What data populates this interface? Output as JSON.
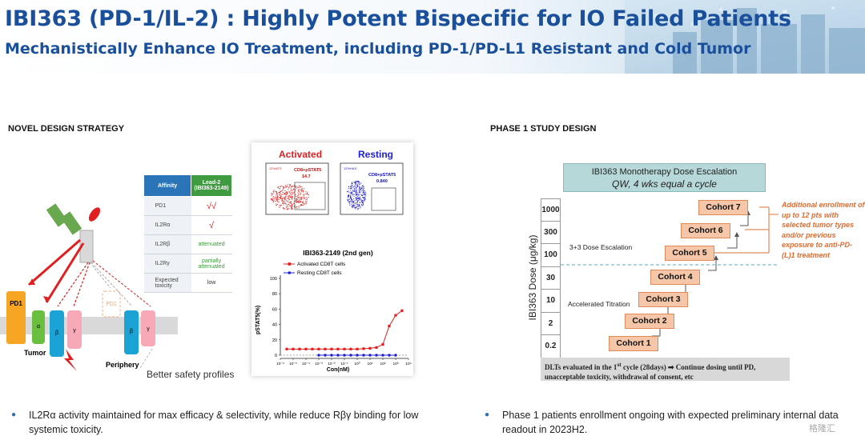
{
  "header": {
    "title": "IBI363 (PD-1/IL-2) : Highly Potent Bispecific for IO Failed Patients",
    "subtitle": "Mechanistically Enhance IO Treatment, including PD-1/PD-L1 Resistant and Cold Tumor"
  },
  "left": {
    "section_title": "NOVEL DESIGN STRATEGY",
    "table": {
      "col1": "Affinity",
      "col2_line1": "Lead-2",
      "col2_line2": "(IBI363-2149)",
      "rows": [
        {
          "label": "PD1",
          "value": "√√"
        },
        {
          "label": "IL2Rα",
          "value": "√"
        },
        {
          "label": "IL2Rβ",
          "value": "attenuated"
        },
        {
          "label": "IL2Rγ",
          "value": "partially attenuated"
        },
        {
          "label": "Expected toxicity",
          "value": "low"
        }
      ]
    },
    "diagram": {
      "pd1_left": "PD1",
      "pd1_right": "PD1",
      "alpha": "α",
      "beta": "β",
      "gamma": "γ",
      "tumor": "Tumor",
      "periphery": "Periphery"
    },
    "safety_text": "Better safety profiles",
    "flow": {
      "activated": "Activated",
      "resting": "Resting",
      "gate_label": "CD8+pSTAT5",
      "activated_value": "14.7",
      "resting_value": "0.840",
      "activated_tag": "12%ATS",
      "resting_tag": "12%HAS"
    },
    "bullet": "IL2Rα activity maintained for max efficacy & selectivity, while reduce Rβγ binding for low systemic toxicity."
  },
  "chart_data": {
    "type": "line",
    "title": "IBI363-2149 (2nd gen)",
    "xlabel": "Con(nM)",
    "ylabel": "pSTAT5(%)",
    "x_scale": "log10",
    "x_ticks": [
      "10⁻⁶",
      "10⁻⁵",
      "10⁻⁴",
      "10⁻³",
      "10⁻²",
      "10⁻¹",
      "10⁰",
      "10¹",
      "10²",
      "10³",
      "10⁴"
    ],
    "x_tick_exponents": [
      -6,
      -5,
      -4,
      -3,
      -2,
      -1,
      0,
      1,
      2,
      3,
      4
    ],
    "ylim": [
      0,
      100
    ],
    "y_ticks": [
      "0",
      "20",
      "40",
      "60",
      "80",
      "100"
    ],
    "y_tick_values": [
      0,
      20,
      40,
      60,
      80,
      100
    ],
    "reference_line": 0,
    "legend_position": "top",
    "series": [
      {
        "name": "Activated CD8T cells",
        "color": "#e02020",
        "x_exp": [
          -5.5,
          -5,
          -4.5,
          -4,
          -3.5,
          -3,
          -2.5,
          -2,
          -1.5,
          -1,
          -0.5,
          0,
          0.5,
          1,
          1.5,
          2,
          2.5,
          3,
          3.5
        ],
        "y": [
          8,
          8,
          8,
          8,
          8,
          8,
          8,
          8,
          8,
          8,
          8,
          8,
          8.5,
          9,
          10,
          14,
          38,
          52,
          58
        ]
      },
      {
        "name": "Resting CD8T cells",
        "color": "#2020d0",
        "x_exp": [
          -3,
          -2.5,
          -2,
          -1.5,
          -1,
          -0.5,
          0,
          0.5,
          1,
          1.5,
          2,
          2.5,
          3
        ],
        "y": [
          0,
          0,
          0,
          0,
          0,
          0,
          0,
          0,
          0,
          0,
          0,
          0,
          0
        ]
      }
    ]
  },
  "right": {
    "section_title": "PHASE 1 STUDY DESIGN",
    "header_line1": "IBI363 Monotherapy Dose Escalation",
    "header_line2": "QW, 4 wks equal a cycle",
    "y_label": "IBI363 Dose (μg/kg)",
    "doses": [
      "1000",
      "300",
      "100",
      "30",
      "10",
      "2",
      "0.2"
    ],
    "cohorts": [
      "Cohort 1",
      "Cohort 2",
      "Cohort 3",
      "Cohort 4",
      "Cohort 5",
      "Cohort 6",
      "Cohort 7"
    ],
    "note_33": "3+3 Dose Escalation",
    "note_accel": "Accelerated Titration",
    "additional": "Additional enrollment of up to 12 pts with selected tumor types and/or previous exposure to anti-PD-(L)1 treatment",
    "dlt_part1": "DLTs evaluated in the 1",
    "dlt_sup": "st",
    "dlt_part2": " cycle (28days) ➡ Continue dosing until PD, unacceptable toxicity, withdrawal of consent, etc",
    "bullet": "Phase 1 patients enrollment ongoing with expected preliminary internal data readout in 2023H2."
  },
  "watermark": "格隆汇",
  "colors": {
    "title_blue": "#1a4f9c",
    "cohort_fill": "#f5c6a8",
    "cohort_border": "#e08a5a",
    "orange_text": "#e06b2e",
    "header_teal": "#b7d8d8"
  }
}
